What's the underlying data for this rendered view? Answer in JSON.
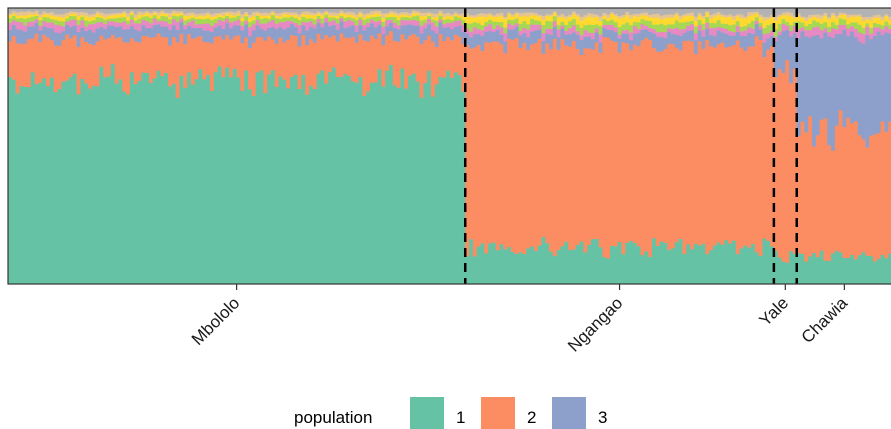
{
  "chart_data": {
    "type": "bar",
    "subtype": "stacked-100-admixture",
    "ylim": [
      0,
      1
    ],
    "grid": false,
    "legend_position": "bottom",
    "legend": {
      "title": "population",
      "entries": [
        "1",
        "2",
        "3"
      ]
    },
    "colors": {
      "1": "#66c2a5",
      "2": "#fc8d62",
      "3": "#8da0cb",
      "4": "#e78ac3",
      "5": "#a6d854",
      "6": "#ffd92f",
      "7": "#e5c494",
      "8": "#b3b3b3"
    },
    "groups": [
      {
        "label": "Mbololo",
        "n": 120
      },
      {
        "label": "Ngangao",
        "n": 81
      },
      {
        "label": "Yale",
        "n": 6
      },
      {
        "label": "Chawia",
        "n": 25
      }
    ],
    "group_profiles": [
      {
        "label": "Mbololo",
        "p1": 0.74,
        "p2": 0.15,
        "p3": 0.04,
        "p4": 0.02,
        "p5": 0.015,
        "p6": 0.01,
        "p7": 0.01,
        "p8": 0.015
      },
      {
        "label": "Ngangao",
        "p1": 0.13,
        "p2": 0.74,
        "p3": 0.04,
        "p4": 0.02,
        "p5": 0.02,
        "p6": 0.02,
        "p7": 0.01,
        "p8": 0.02
      },
      {
        "label": "Yale",
        "p1": 0.1,
        "p2": 0.68,
        "p3": 0.13,
        "p4": 0.02,
        "p5": 0.02,
        "p6": 0.02,
        "p7": 0.01,
        "p8": 0.02
      },
      {
        "label": "Chawia",
        "p1": 0.1,
        "p2": 0.45,
        "p3": 0.35,
        "p4": 0.025,
        "p5": 0.02,
        "p6": 0.02,
        "p7": 0.01,
        "p8": 0.025
      }
    ]
  }
}
